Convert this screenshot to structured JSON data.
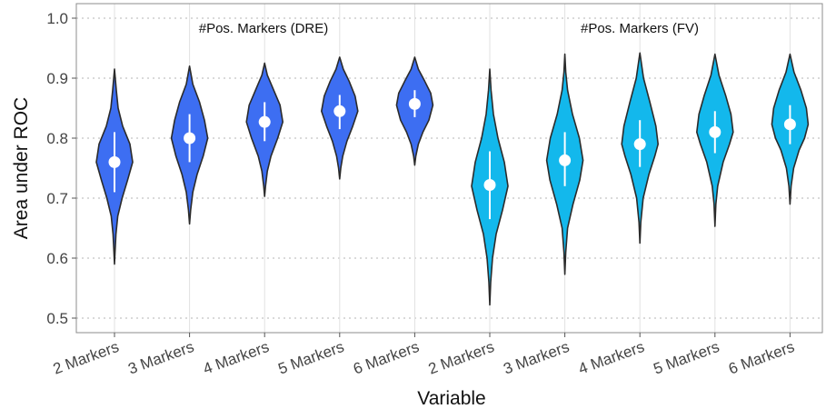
{
  "chart_data": {
    "type": "violin",
    "title": "",
    "xlabel": "Variable",
    "ylabel": "Area under ROC",
    "ylim": [
      0.5,
      1.0
    ],
    "yticks": [
      0.5,
      0.6,
      0.7,
      0.8,
      0.9,
      1.0
    ],
    "ytick_labels": [
      "0.5",
      "0.6",
      "0.7",
      "0.8",
      "0.9",
      "1.0"
    ],
    "grid": true,
    "categories": [
      "2 Markers",
      "3 Markers",
      "4 Markers",
      "5 Markers",
      "6 Markers",
      "2 Markers",
      "3 Markers",
      "4 Markers",
      "5 Markers",
      "6 Markers"
    ],
    "annotations": [
      "#Pos. Markers (DRE)",
      "#Pos. Markers (FV)"
    ],
    "colors": {
      "DRE": "#3D6EF2",
      "FV": "#13B8EC"
    },
    "groups": [
      {
        "color": "#3D6EF2",
        "violins": [
          {
            "min": 0.59,
            "max": 0.915,
            "mean": 0.76,
            "sd_low": 0.71,
            "sd_high": 0.81,
            "dens": [
              [
                0.59,
                0
              ],
              [
                0.61,
                0.03
              ],
              [
                0.64,
                0.08
              ],
              [
                0.67,
                0.18
              ],
              [
                0.7,
                0.42
              ],
              [
                0.73,
                0.72
              ],
              [
                0.76,
                1.0
              ],
              [
                0.79,
                0.85
              ],
              [
                0.82,
                0.45
              ],
              [
                0.85,
                0.2
              ],
              [
                0.88,
                0.1
              ],
              [
                0.915,
                0
              ]
            ]
          },
          {
            "min": 0.657,
            "max": 0.92,
            "mean": 0.8,
            "sd_low": 0.76,
            "sd_high": 0.84,
            "dens": [
              [
                0.657,
                0
              ],
              [
                0.68,
                0.06
              ],
              [
                0.71,
                0.18
              ],
              [
                0.74,
                0.42
              ],
              [
                0.77,
                0.75
              ],
              [
                0.8,
                1.0
              ],
              [
                0.83,
                0.82
              ],
              [
                0.86,
                0.55
              ],
              [
                0.89,
                0.18
              ],
              [
                0.92,
                0
              ]
            ]
          },
          {
            "min": 0.703,
            "max": 0.925,
            "mean": 0.827,
            "sd_low": 0.795,
            "sd_high": 0.86,
            "dens": [
              [
                0.703,
                0
              ],
              [
                0.72,
                0.05
              ],
              [
                0.745,
                0.15
              ],
              [
                0.77,
                0.35
              ],
              [
                0.8,
                0.72
              ],
              [
                0.827,
                1.0
              ],
              [
                0.855,
                0.85
              ],
              [
                0.88,
                0.5
              ],
              [
                0.905,
                0.15
              ],
              [
                0.925,
                0
              ]
            ]
          },
          {
            "min": 0.732,
            "max": 0.935,
            "mean": 0.845,
            "sd_low": 0.815,
            "sd_high": 0.872,
            "dens": [
              [
                0.732,
                0
              ],
              [
                0.75,
                0.06
              ],
              [
                0.77,
                0.17
              ],
              [
                0.795,
                0.4
              ],
              [
                0.82,
                0.72
              ],
              [
                0.845,
                1.0
              ],
              [
                0.87,
                0.85
              ],
              [
                0.895,
                0.52
              ],
              [
                0.915,
                0.2
              ],
              [
                0.935,
                0
              ]
            ]
          },
          {
            "min": 0.755,
            "max": 0.935,
            "mean": 0.857,
            "sd_low": 0.835,
            "sd_high": 0.88,
            "dens": [
              [
                0.755,
                0
              ],
              [
                0.77,
                0.06
              ],
              [
                0.79,
                0.2
              ],
              [
                0.81,
                0.45
              ],
              [
                0.83,
                0.78
              ],
              [
                0.855,
                1.0
              ],
              [
                0.875,
                0.88
              ],
              [
                0.895,
                0.55
              ],
              [
                0.915,
                0.2
              ],
              [
                0.935,
                0
              ]
            ]
          }
        ]
      },
      {
        "color": "#13B8EC",
        "violins": [
          {
            "min": 0.522,
            "max": 0.915,
            "mean": 0.722,
            "sd_low": 0.665,
            "sd_high": 0.778,
            "dens": [
              [
                0.522,
                0
              ],
              [
                0.56,
                0.05
              ],
              [
                0.6,
                0.15
              ],
              [
                0.64,
                0.35
              ],
              [
                0.68,
                0.7
              ],
              [
                0.72,
                1.0
              ],
              [
                0.76,
                0.8
              ],
              [
                0.8,
                0.45
              ],
              [
                0.84,
                0.2
              ],
              [
                0.88,
                0.07
              ],
              [
                0.915,
                0
              ]
            ]
          },
          {
            "min": 0.573,
            "max": 0.94,
            "mean": 0.763,
            "sd_low": 0.72,
            "sd_high": 0.81,
            "dens": [
              [
                0.573,
                0
              ],
              [
                0.61,
                0.05
              ],
              [
                0.65,
                0.15
              ],
              [
                0.69,
                0.45
              ],
              [
                0.73,
                0.82
              ],
              [
                0.763,
                1.0
              ],
              [
                0.8,
                0.8
              ],
              [
                0.84,
                0.42
              ],
              [
                0.88,
                0.15
              ],
              [
                0.91,
                0.05
              ],
              [
                0.94,
                0
              ]
            ]
          },
          {
            "min": 0.625,
            "max": 0.942,
            "mean": 0.79,
            "sd_low": 0.752,
            "sd_high": 0.83,
            "dens": [
              [
                0.625,
                0
              ],
              [
                0.66,
                0.05
              ],
              [
                0.7,
                0.18
              ],
              [
                0.74,
                0.5
              ],
              [
                0.77,
                0.82
              ],
              [
                0.79,
                1.0
              ],
              [
                0.82,
                0.88
              ],
              [
                0.86,
                0.55
              ],
              [
                0.9,
                0.2
              ],
              [
                0.942,
                0
              ]
            ]
          },
          {
            "min": 0.653,
            "max": 0.94,
            "mean": 0.81,
            "sd_low": 0.775,
            "sd_high": 0.845,
            "dens": [
              [
                0.653,
                0
              ],
              [
                0.69,
                0.05
              ],
              [
                0.72,
                0.15
              ],
              [
                0.76,
                0.45
              ],
              [
                0.79,
                0.8
              ],
              [
                0.81,
                1.0
              ],
              [
                0.84,
                0.88
              ],
              [
                0.87,
                0.6
              ],
              [
                0.905,
                0.22
              ],
              [
                0.94,
                0
              ]
            ]
          },
          {
            "min": 0.69,
            "max": 0.94,
            "mean": 0.823,
            "sd_low": 0.79,
            "sd_high": 0.855,
            "dens": [
              [
                0.69,
                0
              ],
              [
                0.72,
                0.06
              ],
              [
                0.75,
                0.2
              ],
              [
                0.78,
                0.5
              ],
              [
                0.8,
                0.8
              ],
              [
                0.823,
                1.0
              ],
              [
                0.85,
                0.9
              ],
              [
                0.88,
                0.6
              ],
              [
                0.91,
                0.22
              ],
              [
                0.94,
                0
              ]
            ]
          }
        ]
      }
    ]
  }
}
